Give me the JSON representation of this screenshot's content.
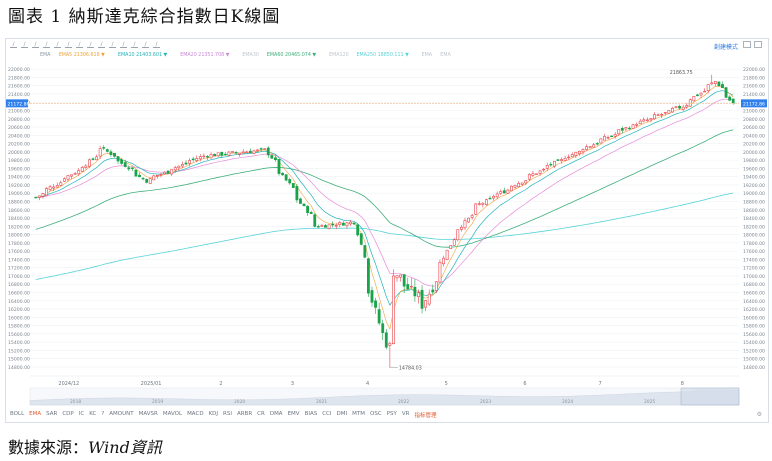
{
  "figure": {
    "title": "圖表 1 納斯達克綜合指數日K線圖",
    "source_label": "數據來源：",
    "source_name": "Wind資訊"
  },
  "toolbar": {
    "icons": [
      "cursor-icon",
      "line-icon",
      "ray-icon",
      "channel-icon",
      "fib-icon",
      "text-icon",
      "measure-icon",
      "eraser-icon",
      "magnet-icon",
      "lock-icon",
      "undo-icon",
      "redo-icon",
      "hand-icon",
      "camera-icon"
    ],
    "right_label": "創建模式",
    "layout_icons": [
      "grid-icon",
      "grid-icon",
      "grid-icon"
    ]
  },
  "chart_data": {
    "type": "candlestick",
    "indicator_legend": [
      {
        "label": "EMA",
        "color": "#8a96a3"
      },
      {
        "label": "EMA5  21306.616 ▼",
        "color": "#f0a33c"
      },
      {
        "label": "EMA10  21403.601 ▼",
        "color": "#22b3b8"
      },
      {
        "label": "EMA20  21351.708 ▼",
        "color": "#c889d6"
      },
      {
        "label": "EMA30",
        "color": "#bfc6ce"
      },
      {
        "label": "EMA60  20465.074 ▼",
        "color": "#3fae7a"
      },
      {
        "label": "EMA120",
        "color": "#bfc6ce"
      },
      {
        "label": "EMA250  18850.111 ▼",
        "color": "#59d3d9"
      },
      {
        "label": "EMA",
        "color": "#bfc6ce"
      },
      {
        "label": "EMA",
        "color": "#bfc6ce"
      }
    ],
    "y_ticks": [
      "22000.00",
      "21800.00",
      "21600.00",
      "21400.00",
      "21200.00",
      "21000.00",
      "20800.00",
      "20600.00",
      "20400.00",
      "20200.00",
      "20000.00",
      "19800.00",
      "19600.00",
      "19400.00",
      "19200.00",
      "19000.00",
      "18800.00",
      "18600.00",
      "18400.00",
      "18200.00",
      "18000.00",
      "17800.00",
      "17600.00",
      "17400.00",
      "17200.00",
      "17000.00",
      "16800.00",
      "16600.00",
      "16400.00",
      "16200.00",
      "16000.00",
      "15800.00",
      "15600.00",
      "15400.00",
      "15200.00",
      "15000.00",
      "14800.00"
    ],
    "ylim": [
      14750,
      22100
    ],
    "current_price": {
      "label": "21172.86",
      "value": 21172.86
    },
    "annotations": [
      {
        "label": "21863.75",
        "value": 21863.75,
        "position": "high"
      },
      {
        "label": "14784.03",
        "value": 14784.03,
        "position": "low"
      }
    ],
    "x_ticks": [
      "2024/12",
      "2025/01",
      "2",
      "3",
      "4",
      "5",
      "6",
      "7",
      "8"
    ],
    "navigator_ticks": [
      "2018",
      "2019",
      "2020",
      "2021",
      "2022",
      "2023",
      "2024",
      "2025"
    ],
    "colors": {
      "up": "#e8434a",
      "down": "#1aa34a",
      "ema5": "#f0a33c",
      "ema10": "#22b3b8",
      "ema20": "#e68ad8",
      "ema60": "#3fae7a",
      "ema250": "#59d3d9",
      "price_line": "#f6c39a"
    },
    "series_anchors": [
      {
        "date": "2024-11-20",
        "close": 18900
      },
      {
        "date": "2024-12-10",
        "close": 19700
      },
      {
        "date": "2024-12-16",
        "close": 20100
      },
      {
        "date": "2025-01-02",
        "close": 19300
      },
      {
        "date": "2025-01-24",
        "close": 19900
      },
      {
        "date": "2025-02-18",
        "close": 20050
      },
      {
        "date": "2025-03-10",
        "close": 18200
      },
      {
        "date": "2025-03-25",
        "close": 18300
      },
      {
        "date": "2025-04-04",
        "close": 15600
      },
      {
        "date": "2025-04-08",
        "close": 15300
      },
      {
        "date": "2025-04-09",
        "close": 17100
      },
      {
        "date": "2025-04-21",
        "close": 16300
      },
      {
        "date": "2025-05-02",
        "close": 17900
      },
      {
        "date": "2025-05-12",
        "close": 18700
      },
      {
        "date": "2025-06-10",
        "close": 19700
      },
      {
        "date": "2025-07-10",
        "close": 20600
      },
      {
        "date": "2025-07-31",
        "close": 21100
      },
      {
        "date": "2025-08-13",
        "close": 21700
      },
      {
        "date": "2025-08-20",
        "close": 21173
      }
    ],
    "ema_values": {
      "EMA5": 21306.616,
      "EMA10": 21403.601,
      "EMA20": 21351.708,
      "EMA60": 20465.074,
      "EMA250": 18850.111
    }
  },
  "bottom_tabs": [
    "BOLL",
    "EMA",
    "SAR",
    "CDP",
    "IC",
    "KC",
    "?",
    "AMOUNT",
    "MAVSR",
    "MAVOL",
    "MACD",
    "KDJ",
    "RSI",
    "ARBR",
    "CR",
    "DMA",
    "EMV",
    "BIAS",
    "CCI",
    "DMI",
    "MTM",
    "OSC",
    "PSY",
    "VR",
    "指标管理"
  ]
}
